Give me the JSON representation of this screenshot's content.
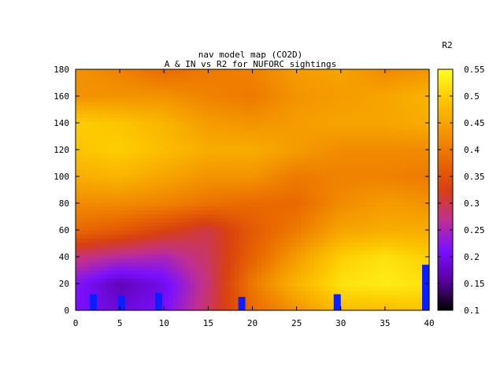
{
  "chart_data": {
    "type": "heatmap",
    "title": "nav model map (CO2D)",
    "subtitle": "A & IN vs R2 for NUFORC sightings",
    "colorbar_label": "R2",
    "xlim": [
      0,
      40
    ],
    "ylim": [
      0,
      180
    ],
    "x_ticks": [
      "0",
      "5",
      "10",
      "15",
      "20",
      "25",
      "30",
      "35",
      "40"
    ],
    "y_ticks": [
      "0",
      "20",
      "40",
      "60",
      "80",
      "100",
      "120",
      "140",
      "160",
      "180"
    ],
    "colorbar_range": [
      0.1,
      0.55
    ],
    "colorbar_ticks": [
      "0.1",
      "0.15",
      "0.2",
      "0.25",
      "0.3",
      "0.35",
      "0.4",
      "0.45",
      "0.5",
      "0.55"
    ],
    "palette": [
      "#000000",
      "#5a00a0",
      "#7a10ff",
      "#c03090",
      "#d84010",
      "#ea6a00",
      "#f59a00",
      "#fdc800",
      "#ffff20"
    ],
    "grid_x": [
      0,
      5,
      10,
      15,
      20,
      25,
      30,
      35,
      40
    ],
    "grid_y": [
      0,
      20,
      40,
      60,
      80,
      100,
      120,
      140,
      160,
      180
    ],
    "grid_values": [
      [
        0.21,
        0.22,
        0.28,
        0.38,
        0.42,
        0.46,
        0.49,
        0.5,
        0.43,
        0.43
      ],
      [
        0.19,
        0.17,
        0.26,
        0.36,
        0.42,
        0.47,
        0.5,
        0.49,
        0.43,
        0.41
      ],
      [
        0.21,
        0.2,
        0.25,
        0.33,
        0.41,
        0.45,
        0.48,
        0.47,
        0.43,
        0.38
      ],
      [
        0.29,
        0.28,
        0.29,
        0.3,
        0.39,
        0.43,
        0.46,
        0.44,
        0.41,
        0.4
      ],
      [
        0.38,
        0.4,
        0.37,
        0.36,
        0.38,
        0.43,
        0.46,
        0.43,
        0.4,
        0.41
      ],
      [
        0.43,
        0.47,
        0.44,
        0.4,
        0.38,
        0.4,
        0.44,
        0.44,
        0.43,
        0.44
      ],
      [
        0.48,
        0.52,
        0.5,
        0.45,
        0.42,
        0.41,
        0.42,
        0.45,
        0.44,
        0.45
      ],
      [
        0.48,
        0.53,
        0.52,
        0.46,
        0.44,
        0.41,
        0.42,
        0.45,
        0.45,
        0.42
      ],
      [
        0.49,
        0.52,
        0.5,
        0.46,
        0.43,
        0.4,
        0.42,
        0.46,
        0.47,
        0.43
      ]
    ],
    "markers": [
      {
        "x": 2,
        "y_min": 0,
        "y_max": 12,
        "color": "#0a1eff"
      },
      {
        "x": 5.2,
        "y_min": 0,
        "y_max": 11,
        "color": "#0a1eff"
      },
      {
        "x": 9.4,
        "y_min": 0,
        "y_max": 13,
        "color": "#0a1eff"
      },
      {
        "x": 18.8,
        "y_min": 0,
        "y_max": 10,
        "color": "#0a1eff"
      },
      {
        "x": 29.6,
        "y_min": 0,
        "y_max": 12,
        "color": "#0a1eff"
      },
      {
        "x": 39.6,
        "y_min": 0,
        "y_max": 34,
        "color": "#0a1eff"
      }
    ]
  }
}
